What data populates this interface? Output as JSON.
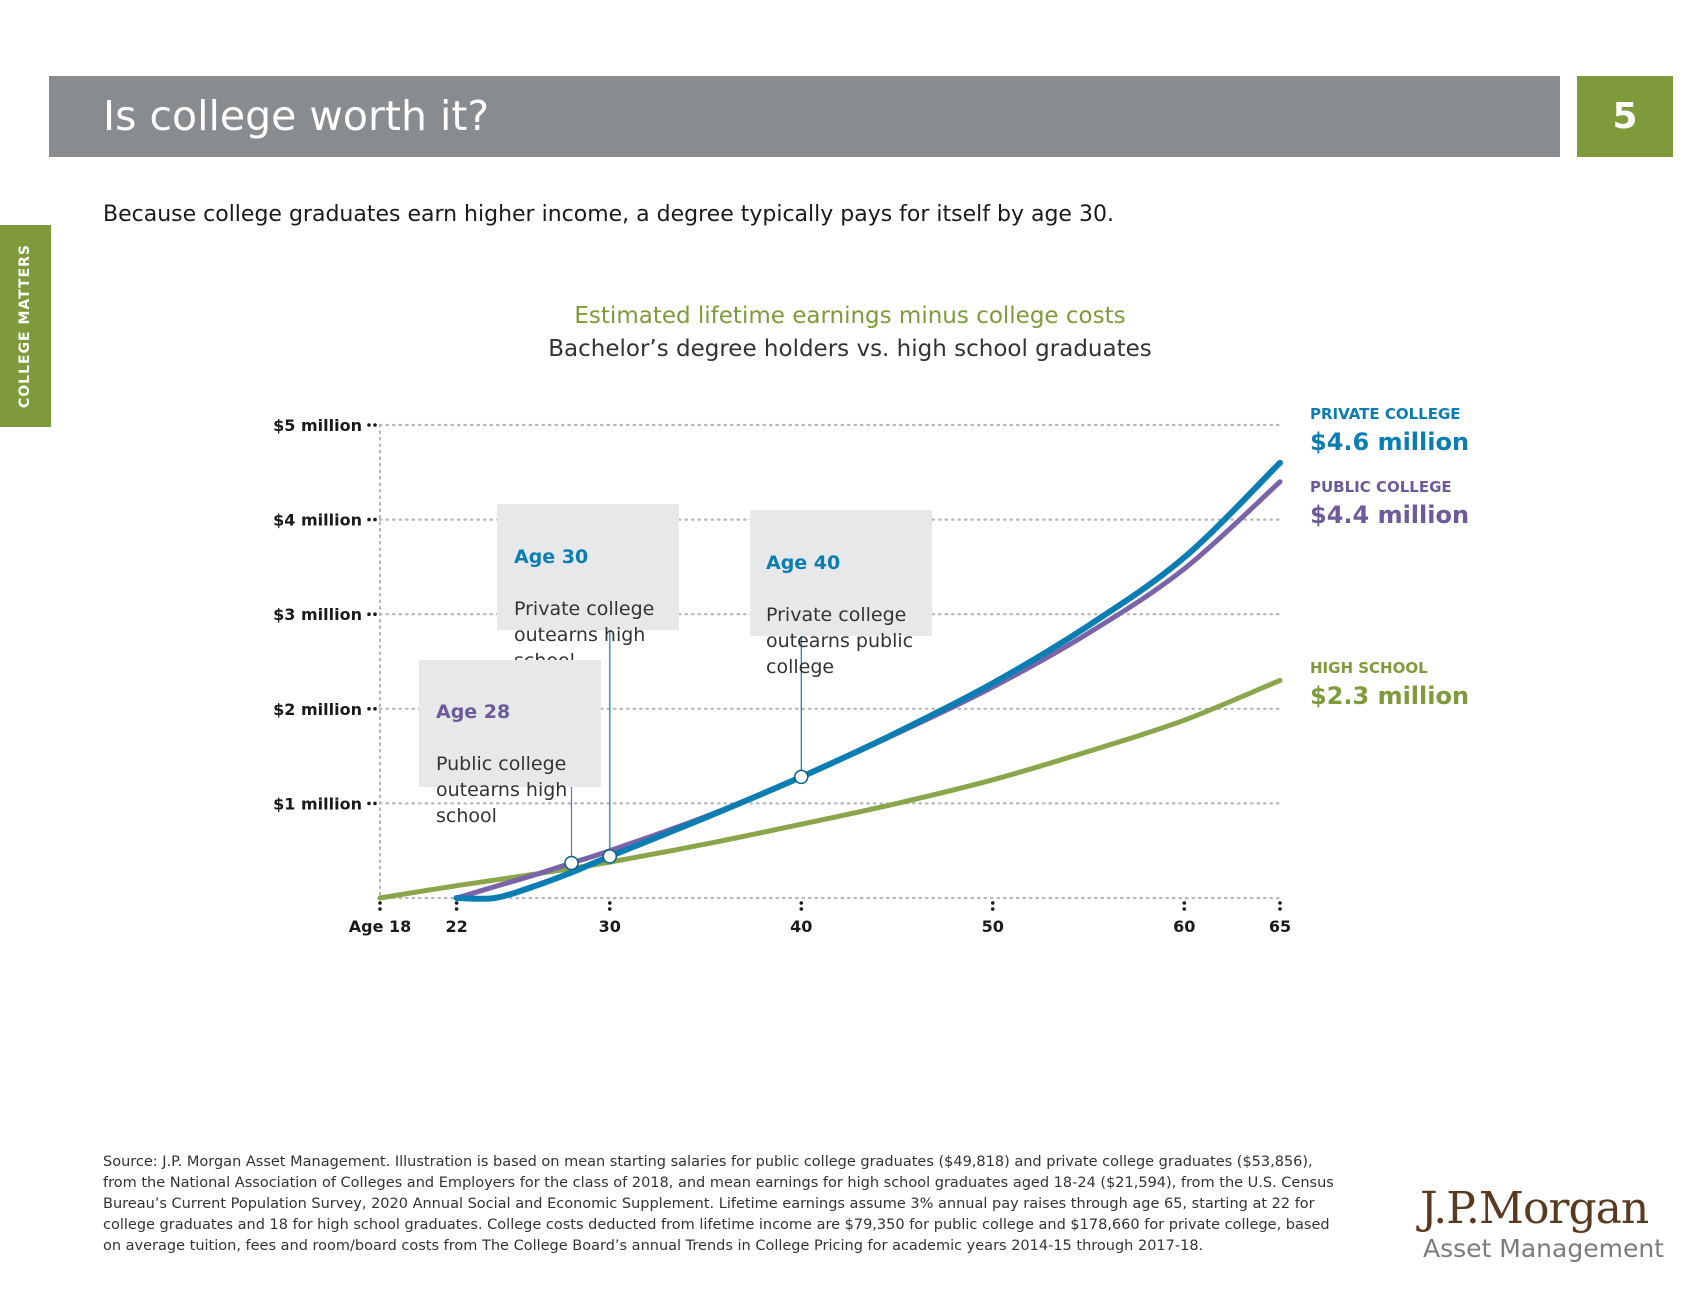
{
  "header": {
    "title": "Is college worth it?",
    "page_number": "5",
    "side_tab": "COLLEGE MATTERS"
  },
  "subtitle": "Because college graduates earn higher income, a degree typically pays for itself by age 30.",
  "colors": {
    "private": "#0a7db3",
    "public": "#7a63a8",
    "high_school": "#8aa54a",
    "accent_green": "#7f9a3a"
  },
  "callouts": [
    {
      "age": "Age 30",
      "text": "Private college\noutearns high\nschool"
    },
    {
      "age": "Age 40",
      "text": "Private college\noutearns public\ncollege"
    },
    {
      "age": "Age 28",
      "text": "Public college\noutearns high\nschool"
    }
  ],
  "legend": {
    "private": {
      "label": "PRIVATE COLLEGE",
      "value": "$4.6 million"
    },
    "public": {
      "label": "PUBLIC COLLEGE",
      "value": "$4.4 million"
    },
    "high_school": {
      "label": "HIGH SCHOOL",
      "value": "$2.3 million"
    }
  },
  "chart_data": {
    "type": "line",
    "title": "Estimated lifetime earnings minus college costs",
    "subtitle": "Bachelor’s degree holders vs. high school graduates",
    "x_ticks": [
      18,
      22,
      30,
      40,
      50,
      60,
      65
    ],
    "x_tick_labels": [
      "Age 18",
      "22",
      "30",
      "40",
      "50",
      "60",
      "65"
    ],
    "y_ticks": [
      1,
      2,
      3,
      4,
      5
    ],
    "y_tick_labels": [
      "$1 million",
      "$2 million",
      "$3 million",
      "$4 million",
      "$5 million"
    ],
    "xlim": [
      18,
      65
    ],
    "ylim": [
      0,
      5
    ],
    "grid": true,
    "series": [
      {
        "name": "PRIVATE COLLEGE",
        "x": [
          22,
          24,
          26,
          28,
          30,
          35,
          40,
          45,
          50,
          55,
          60,
          65
        ],
        "y": [
          0.0,
          0.0,
          0.12,
          0.27,
          0.44,
          0.85,
          1.28,
          1.75,
          2.27,
          2.88,
          3.6,
          4.6
        ]
      },
      {
        "name": "PUBLIC COLLEGE",
        "x": [
          22,
          24,
          26,
          28,
          30,
          35,
          40,
          45,
          50,
          55,
          60,
          65
        ],
        "y": [
          0.0,
          0.12,
          0.24,
          0.37,
          0.5,
          0.86,
          1.28,
          1.74,
          2.23,
          2.8,
          3.48,
          4.4
        ]
      },
      {
        "name": "HIGH SCHOOL",
        "x": [
          18,
          22,
          26,
          30,
          35,
          40,
          45,
          50,
          55,
          60,
          65
        ],
        "y": [
          0.0,
          0.13,
          0.25,
          0.38,
          0.57,
          0.78,
          1.0,
          1.25,
          1.55,
          1.88,
          2.3
        ]
      }
    ],
    "markers": [
      {
        "x": 28,
        "y": 0.37
      },
      {
        "x": 30,
        "y": 0.44
      },
      {
        "x": 40,
        "y": 1.28
      }
    ]
  },
  "source_note": "Source: J.P. Morgan Asset Management. Illustration is based on mean starting salaries for public college graduates ($49,818) and private college graduates ($53,856),\nfrom the National Association of Colleges and Employers for the class of 2018, and mean earnings for high school graduates aged 18-24 ($21,594), from the U.S. Census\nBureau’s Current Population Survey, 2020 Annual Social and Economic Supplement. Lifetime earnings assume 3% annual pay raises through age 65, starting at 22 for\ncollege graduates and 18 for high school graduates. College costs deducted from lifetime income are $79,350 for public college and $178,660 for private college, based\non average tuition, fees and room/board costs from The College Board’s annual Trends in College Pricing for academic years 2014-15 through 2017-18.",
  "logo": {
    "main": "J.P.Morgan",
    "sub": "Asset Management"
  }
}
